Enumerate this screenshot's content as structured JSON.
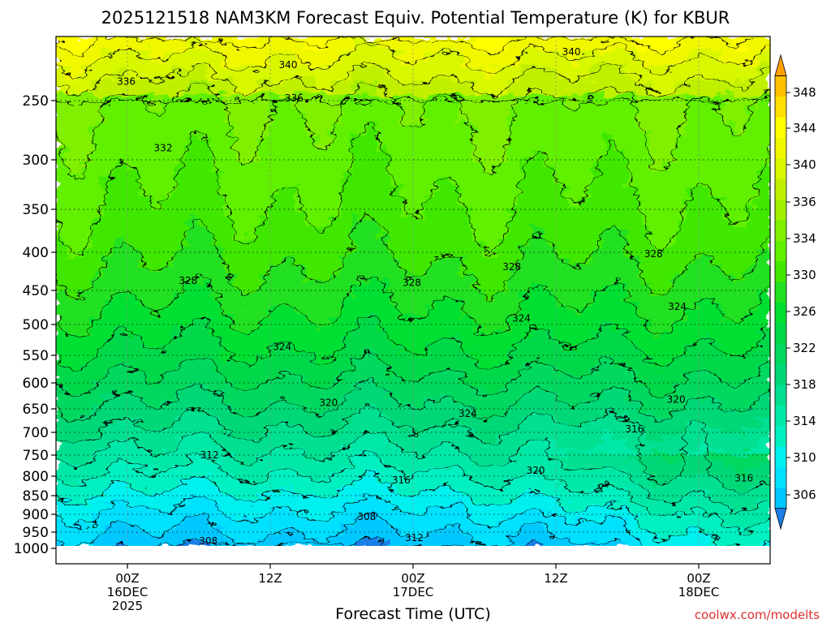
{
  "chart_data": {
    "type": "heatmap",
    "title": "2025121518 NAM3KM Forecast Equiv. Potential Temperature (K) for KBUR",
    "xlabel": "Forecast Time (UTC)",
    "ylabel": "",
    "credit": "coolwx.com/modelts",
    "y_ticks": [
      "250",
      "300",
      "350",
      "400",
      "450",
      "500",
      "550",
      "600",
      "650",
      "700",
      "750",
      "800",
      "850",
      "900",
      "950",
      "1000"
    ],
    "y_tick_values": [
      250,
      300,
      350,
      400,
      450,
      500,
      550,
      600,
      650,
      700,
      750,
      800,
      850,
      900,
      950,
      1000
    ],
    "x_ticks": [
      {
        "hour": 6,
        "lines": [
          "00Z",
          "16DEC",
          "2025"
        ]
      },
      {
        "hour": 18,
        "lines": [
          "12Z"
        ]
      },
      {
        "hour": 30,
        "lines": [
          "00Z",
          "17DEC"
        ]
      },
      {
        "hour": 42,
        "lines": [
          "12Z"
        ]
      },
      {
        "hour": 54,
        "lines": [
          "00Z",
          "18DEC"
        ]
      }
    ],
    "x_range_hours": [
      0,
      60
    ],
    "y_range_hpa": [
      200,
      1000
    ],
    "grid": true,
    "colorbar": {
      "position": "right",
      "labels": [
        "348",
        "344",
        "340",
        "336",
        "334",
        "330",
        "326",
        "322",
        "318",
        "314",
        "310",
        "306"
      ],
      "levels": [
        304,
        306,
        308,
        310,
        312,
        314,
        316,
        318,
        320,
        322,
        324,
        326,
        328,
        330,
        332,
        334,
        336,
        338,
        340,
        342,
        344,
        346,
        348,
        350
      ],
      "colors": [
        "#1a7ee6",
        "#00c8ff",
        "#00e0ff",
        "#00f0f0",
        "#00f0c0",
        "#00e8a8",
        "#00e090",
        "#00d878",
        "#00d860",
        "#00d848",
        "#00e030",
        "#20e020",
        "#40e800",
        "#60f000",
        "#80f000",
        "#a0f000",
        "#c0f000",
        "#d8f800",
        "#f0f800",
        "#ffff00",
        "#ffe000",
        "#ffc000",
        "#ffa000"
      ]
    },
    "contour_labels": [
      {
        "text": "340",
        "hour": 43.3,
        "hpa": 212
      },
      {
        "text": "340",
        "hour": 19.5,
        "hpa": 222
      },
      {
        "text": "336",
        "hour": 5.9,
        "hpa": 235
      },
      {
        "text": "336",
        "hour": 20.0,
        "hpa": 248
      },
      {
        "text": "332",
        "hour": 9.0,
        "hpa": 290
      },
      {
        "text": "328",
        "hour": 11.1,
        "hpa": 437
      },
      {
        "text": "328",
        "hour": 29.9,
        "hpa": 440
      },
      {
        "text": "328",
        "hour": 38.3,
        "hpa": 419
      },
      {
        "text": "328",
        "hour": 50.2,
        "hpa": 402
      },
      {
        "text": "324",
        "hour": 19.0,
        "hpa": 536
      },
      {
        "text": "324",
        "hour": 39.1,
        "hpa": 491
      },
      {
        "text": "324",
        "hour": 52.2,
        "hpa": 474
      },
      {
        "text": "324",
        "hour": 34.6,
        "hpa": 660
      },
      {
        "text": "320",
        "hour": 22.9,
        "hpa": 638
      },
      {
        "text": "320",
        "hour": 52.1,
        "hpa": 632
      },
      {
        "text": "320",
        "hour": 40.3,
        "hpa": 787
      },
      {
        "text": "316",
        "hour": 48.6,
        "hpa": 693
      },
      {
        "text": "316",
        "hour": 57.8,
        "hpa": 805
      },
      {
        "text": "316",
        "hour": 29.0,
        "hpa": 810
      },
      {
        "text": "312",
        "hour": 12.9,
        "hpa": 750
      },
      {
        "text": "312",
        "hour": 30.1,
        "hpa": 967
      },
      {
        "text": "308",
        "hour": 26.1,
        "hpa": 907
      },
      {
        "text": "308",
        "hour": 12.8,
        "hpa": 978
      }
    ]
  }
}
